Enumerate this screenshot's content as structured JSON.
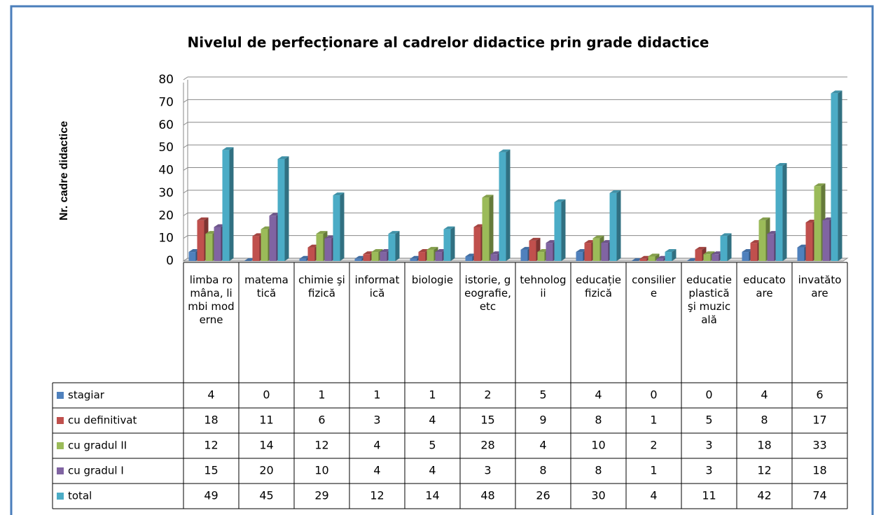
{
  "chart_data": {
    "type": "bar3d",
    "title": "Nivelul de perfecționare al cadrelor didactice  prin grade didactice",
    "y_label": "Nr. cadre didactice",
    "categories": [
      "limba româna, limbi moderne",
      "matematică",
      "chimie şi fizică",
      "informatică",
      "biologie",
      "istorie, geografie, etc",
      "tehnologii",
      "educație fizică",
      "consiliere",
      "educatie plastică şi muzicală",
      "educatoare",
      "invatătoare"
    ],
    "series": [
      {
        "name": "stagiar",
        "color": "#4f81bd",
        "values": [
          4,
          0,
          1,
          1,
          1,
          2,
          5,
          4,
          0,
          0,
          4,
          6
        ]
      },
      {
        "name": "cu definitivat",
        "color": "#c0504d",
        "values": [
          18,
          11,
          6,
          3,
          4,
          15,
          9,
          8,
          1,
          5,
          8,
          17
        ]
      },
      {
        "name": "cu gradul II",
        "color": "#9bbb59",
        "values": [
          12,
          14,
          12,
          4,
          5,
          28,
          4,
          10,
          2,
          3,
          18,
          33
        ]
      },
      {
        "name": "cu gradul I",
        "color": "#8064a2",
        "values": [
          15,
          20,
          10,
          4,
          4,
          3,
          8,
          8,
          1,
          3,
          12,
          18
        ]
      },
      {
        "name": "total",
        "color": "#4bacc6",
        "values": [
          49,
          45,
          29,
          12,
          14,
          48,
          26,
          30,
          4,
          11,
          42,
          74
        ]
      }
    ],
    "ylim": [
      0,
      80
    ],
    "yticks": [
      0,
      10,
      20,
      30,
      40,
      50,
      60,
      70,
      80
    ],
    "grid": true
  }
}
